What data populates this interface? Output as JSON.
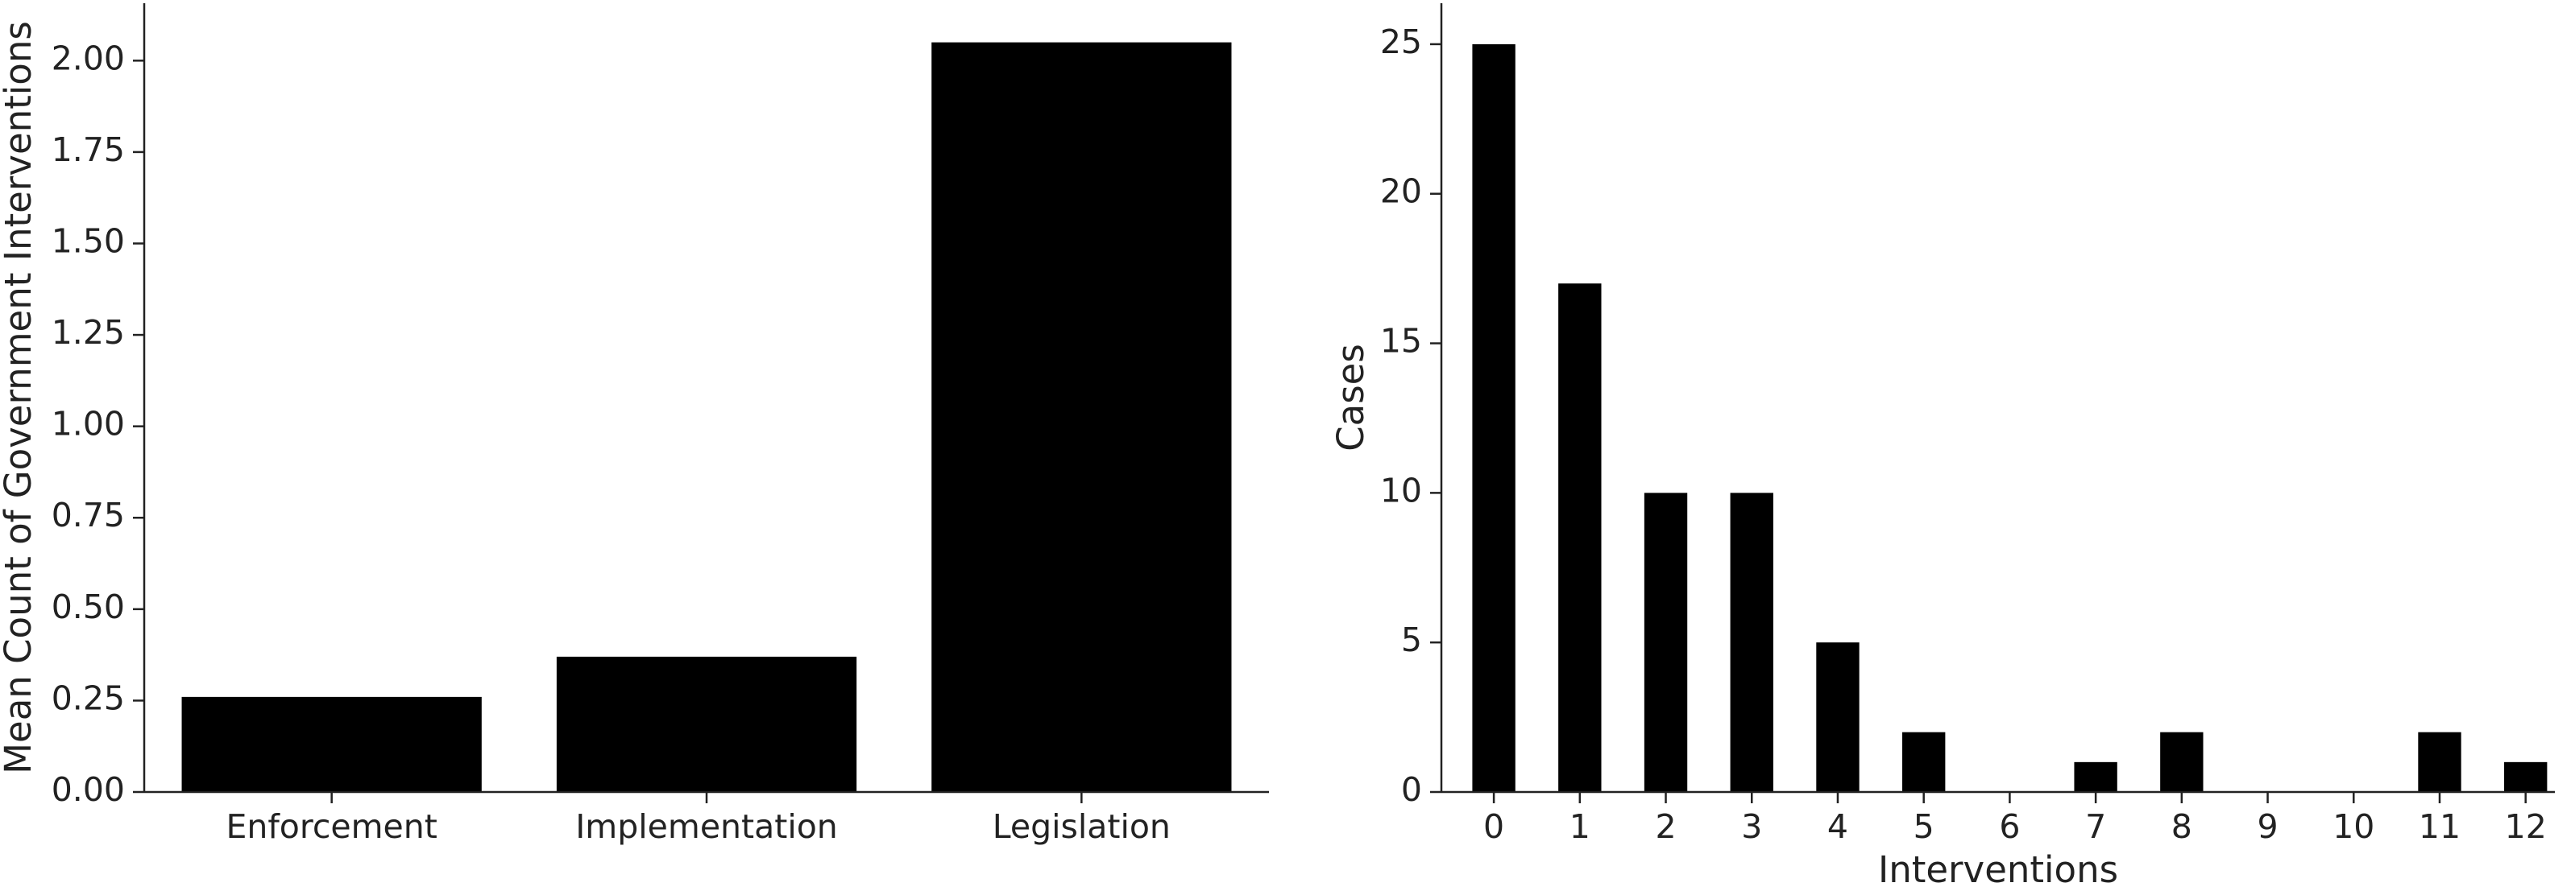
{
  "chart_data": [
    {
      "type": "bar",
      "ylabel": "Mean Count of Government Interventions",
      "categories": [
        "Enforcement",
        "Implementation",
        "Legislation"
      ],
      "values": [
        0.26,
        0.37,
        2.05
      ],
      "color": "#000000",
      "ylim": [
        0,
        2.157
      ],
      "yticks": [
        {
          "value": 0,
          "label": "0.00"
        },
        {
          "value": 0.25,
          "label": "0.25"
        },
        {
          "value": 0.5,
          "label": "0.50"
        },
        {
          "value": 0.75,
          "label": "0.75"
        },
        {
          "value": 1,
          "label": "1.00"
        },
        {
          "value": 1.25,
          "label": "1.25"
        },
        {
          "value": 1.5,
          "label": "1.50"
        },
        {
          "value": 1.75,
          "label": "1.75"
        },
        {
          "value": 2,
          "label": "2.00"
        }
      ]
    },
    {
      "type": "bar",
      "xlabel": "Interventions",
      "ylabel": "Cases",
      "x": [
        0,
        1,
        2,
        3,
        4,
        5,
        6,
        7,
        8,
        9,
        10,
        11,
        12
      ],
      "values": [
        25,
        17,
        10,
        10,
        5,
        2,
        0,
        1,
        2,
        0,
        0,
        2,
        1
      ],
      "color": "#000000",
      "xlim": [
        -0.61,
        12.34
      ],
      "xticks": [
        0,
        1,
        2,
        3,
        4,
        5,
        6,
        7,
        8,
        9,
        10,
        11,
        12
      ],
      "ylim": [
        0,
        26.37
      ],
      "yticks": [
        0,
        5,
        10,
        15,
        20,
        25
      ]
    }
  ]
}
